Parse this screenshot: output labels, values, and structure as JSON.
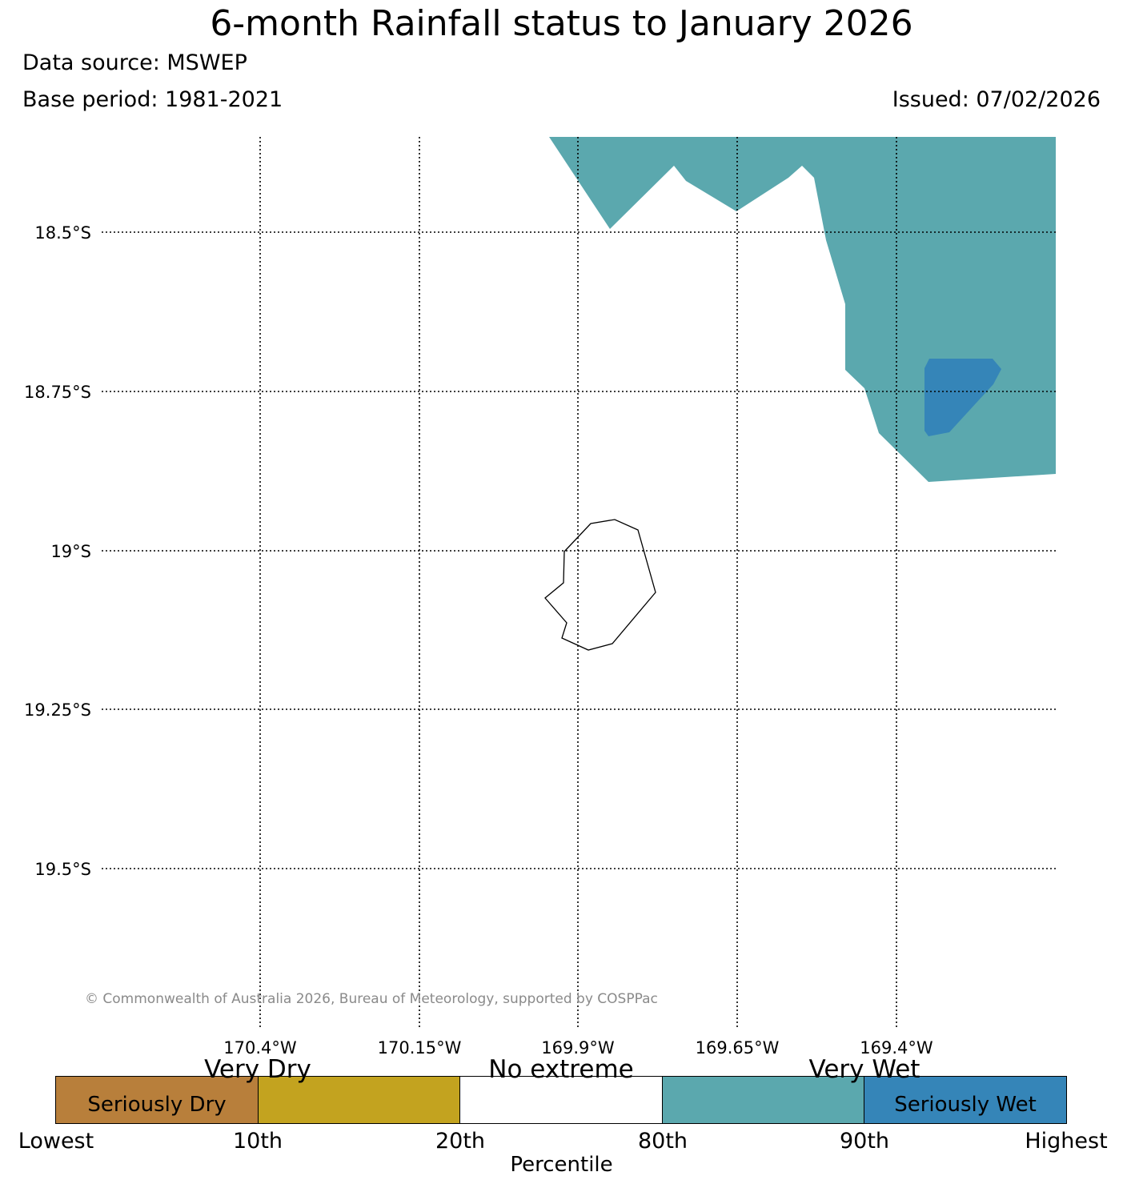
{
  "title": "6-month Rainfall status to January 2026",
  "data_source": "Data source: MSWEP",
  "base_period": "Base period: 1981-2021",
  "issued": "Issued: 07/02/2026",
  "map": {
    "latitude_labels": [
      "18.5°S",
      "18.75°S",
      "19°S",
      "19.25°S",
      "19.5°S"
    ],
    "longitude_labels": [
      "170.4°W",
      "170.15°W",
      "169.9°W",
      "169.65°W",
      "169.4°W"
    ],
    "copyright": "© Commonwealth of Australia 2026, Bureau of Meteorology, supported by COSPPac",
    "regions": [
      {
        "name": "very-wet-region",
        "category": "Very Wet",
        "color": "#5ba8ae"
      },
      {
        "name": "seriously-wet-region",
        "category": "Seriously Wet",
        "color": "#3585b8"
      }
    ],
    "island": "Niue coastline"
  },
  "legend": {
    "categories": [
      {
        "label": "Seriously Dry",
        "color": "#b87f3b"
      },
      {
        "label": "Very Dry",
        "color": "#c3a31f"
      },
      {
        "label": "No extreme",
        "color": "#ffffff"
      },
      {
        "label": "Very Wet",
        "color": "#5ba8ae"
      },
      {
        "label": "Seriously Wet",
        "color": "#3585b8"
      }
    ],
    "upper_labels": [
      "Very Dry",
      "No extreme",
      "Very Wet"
    ],
    "box_labels": [
      "Seriously Dry",
      "Seriously Wet"
    ],
    "ticks": [
      "Lowest",
      "10th",
      "20th",
      "80th",
      "90th",
      "Highest"
    ],
    "axis_label": "Percentile"
  }
}
